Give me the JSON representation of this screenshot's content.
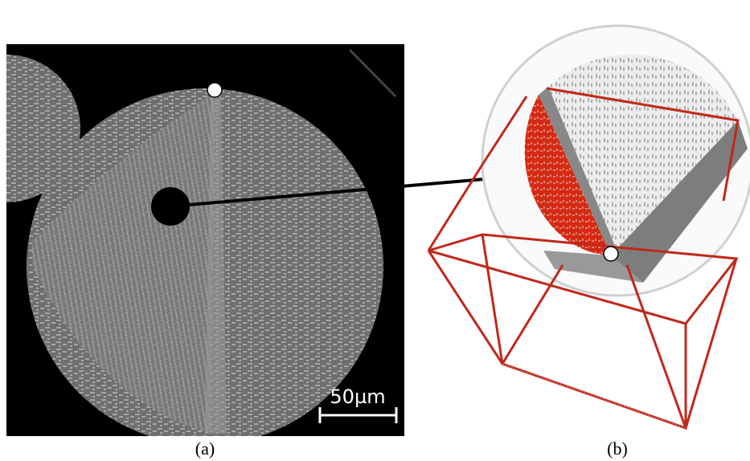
{
  "panels": [
    {
      "label": "(a)",
      "scale_bar": "50µm"
    },
    {
      "label": "(b)"
    }
  ]
}
